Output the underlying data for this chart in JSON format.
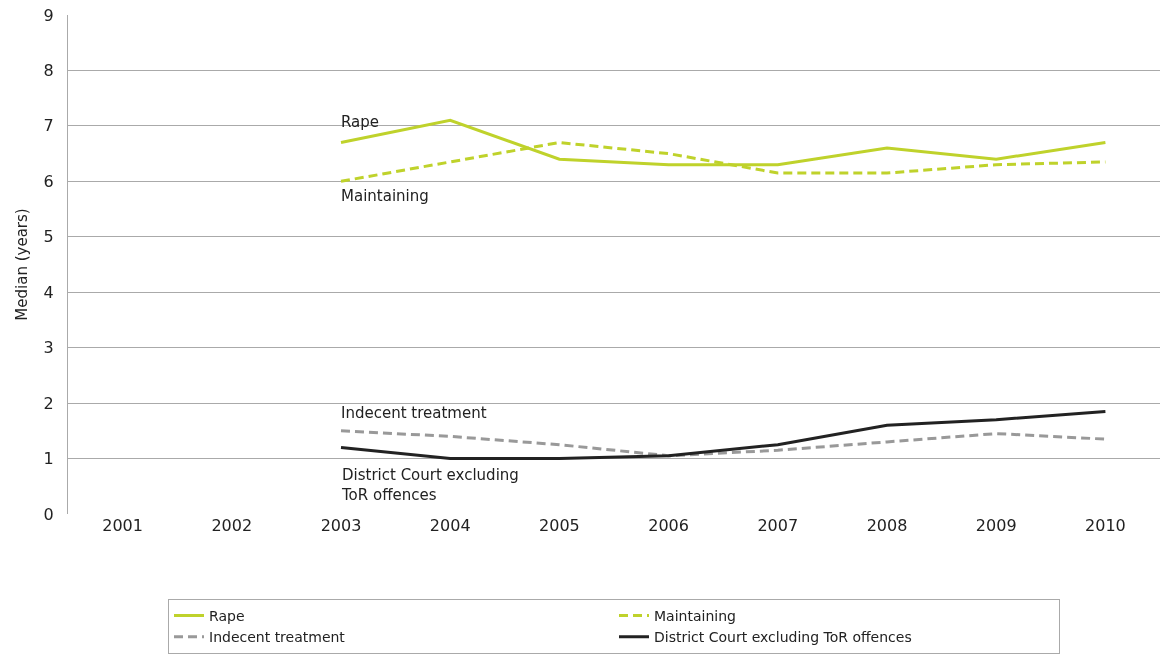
{
  "chart_data": {
    "type": "line",
    "ylabel": "Median (years)",
    "categories": [
      "2001",
      "2002",
      "2003",
      "2004",
      "2005",
      "2006",
      "2007",
      "2008",
      "2009",
      "2010"
    ],
    "series": [
      {
        "name": "Rape",
        "color": "#bfd22b",
        "line_style": "solid",
        "values": [
          null,
          null,
          6.7,
          7.1,
          6.4,
          6.3,
          6.3,
          6.6,
          6.4,
          6.7
        ]
      },
      {
        "name": "Maintaining",
        "color": "#bfd22b",
        "line_style": "dashed",
        "values": [
          null,
          null,
          6.0,
          6.35,
          6.7,
          6.5,
          6.15,
          6.15,
          6.3,
          6.35
        ]
      },
      {
        "name": "Indecent treatment",
        "color": "#999999",
        "line_style": "dashed",
        "values": [
          null,
          null,
          1.5,
          1.4,
          1.25,
          1.05,
          1.15,
          1.3,
          1.45,
          1.35
        ]
      },
      {
        "name": "District Court excluding ToR offences",
        "color": "#222222",
        "line_style": "solid",
        "values": [
          null,
          null,
          1.2,
          1.0,
          1.0,
          1.05,
          1.25,
          1.6,
          1.7,
          1.85
        ]
      }
    ],
    "annotations": [
      "Rape",
      "Maintaining",
      "Indecent treatment",
      "District Court excluding ToR offences"
    ],
    "ylim": [
      0,
      9
    ],
    "yticks": [
      0,
      1,
      2,
      3,
      4,
      5,
      6,
      7,
      8,
      9
    ],
    "grid": "y",
    "legend": "bottom",
    "marker": "none"
  }
}
